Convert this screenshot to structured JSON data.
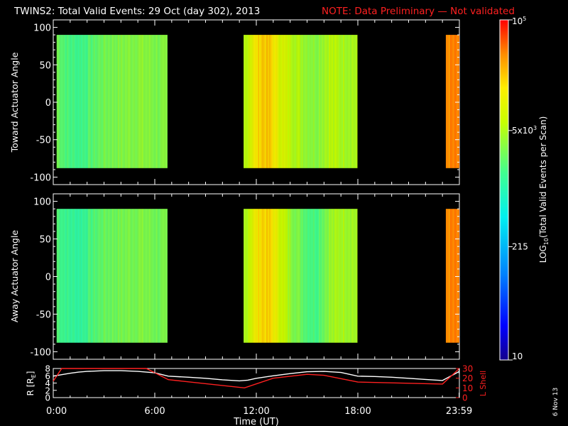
{
  "header": {
    "title": "TWINS2: Total Valid Events: 29 Oct (day 302), 2013",
    "note": "NOTE: Data Preliminary — Not validated",
    "note_color": "#ff2020"
  },
  "footer": {
    "date_stamp": "6 Nov 13"
  },
  "chart_data": [
    {
      "type": "heatmap",
      "panel": "toward",
      "ylabel": "Toward Actuator Angle",
      "ylim": [
        -110,
        110
      ],
      "yticks": [
        100,
        50,
        0,
        -50,
        -100
      ],
      "angle_range": [
        -88,
        90
      ],
      "x_unit": "hours UT",
      "coverage": [
        {
          "start": 0.2,
          "end": 6.75
        },
        {
          "start": 11.25,
          "end": 17.98
        },
        {
          "start": 23.2,
          "end": 24.0
        }
      ],
      "colorscale": "log10 events per scan, 10 to 1e5",
      "profile_hours": [
        0.2,
        0.8,
        1.5,
        2.2,
        3.0,
        4.0,
        5.0,
        6.0,
        6.75,
        11.25,
        11.8,
        12.3,
        12.8,
        13.3,
        14.0,
        15.0,
        15.5,
        16.3,
        17.0,
        17.98,
        23.2,
        24.0
      ],
      "profile_log_counts": [
        3.45,
        3.25,
        3.2,
        3.3,
        3.45,
        3.5,
        3.55,
        3.5,
        3.45,
        3.7,
        4.1,
        4.35,
        4.3,
        4.0,
        3.8,
        3.6,
        3.55,
        3.75,
        3.7,
        3.7,
        4.6,
        4.6
      ]
    },
    {
      "type": "heatmap",
      "panel": "away",
      "ylabel": "Away Actuator Angle",
      "ylim": [
        -110,
        110
      ],
      "yticks": [
        100,
        50,
        0,
        -50,
        -100
      ],
      "angle_range": [
        -88,
        90
      ],
      "x_unit": "hours UT",
      "coverage": [
        {
          "start": 0.2,
          "end": 6.75
        },
        {
          "start": 11.25,
          "end": 17.98
        },
        {
          "start": 23.2,
          "end": 24.0
        }
      ],
      "colorscale": "log10 events per scan, 10 to 1e5",
      "profile_hours": [
        0.2,
        0.8,
        1.5,
        2.2,
        3.0,
        4.0,
        5.0,
        6.0,
        6.75,
        11.25,
        11.8,
        12.3,
        12.8,
        13.3,
        14.0,
        15.0,
        15.5,
        16.3,
        17.0,
        17.98,
        23.2,
        24.0
      ],
      "profile_log_counts": [
        3.3,
        3.15,
        3.1,
        3.25,
        3.4,
        3.45,
        3.5,
        3.45,
        3.4,
        3.65,
        4.05,
        4.3,
        4.25,
        3.95,
        3.6,
        3.3,
        3.25,
        3.6,
        3.7,
        3.65,
        4.6,
        4.6
      ]
    },
    {
      "type": "line",
      "panel": "orbit",
      "ylabel": "R [Rₑ]",
      "ylabel_main": "R [R",
      "ylabel_sub": "E",
      "ylabel_close": "]",
      "ylim": [
        0,
        8
      ],
      "yticks": [
        8,
        6,
        4,
        2,
        0
      ],
      "y2label": "L Shell",
      "y2lim": [
        0,
        30
      ],
      "y2ticks": [
        30,
        20,
        10,
        0
      ],
      "xlabel": "Time (UT)",
      "xlim": [
        0,
        24
      ],
      "xticks": [
        0,
        6,
        12,
        18,
        23.983
      ],
      "xticklabels": [
        "0:00",
        "6:00",
        "12:00",
        "18:00",
        "23:59"
      ],
      "series": [
        {
          "color": "#ffffff",
          "axis": "left",
          "x": [
            0,
            0.5,
            1.0,
            1.5,
            2.0,
            3.0,
            4.0,
            5.0,
            6.0,
            6.8,
            8.0,
            9.0,
            10.0,
            11.0,
            11.5,
            12.0,
            13.0,
            14.0,
            15.0,
            16.0,
            17.0,
            18.0,
            19.0,
            20.0,
            21.0,
            22.0,
            23.0,
            24.0
          ],
          "y": [
            5.9,
            6.3,
            6.7,
            7.0,
            7.2,
            7.4,
            7.4,
            7.2,
            6.8,
            5.9,
            5.6,
            5.3,
            4.9,
            4.6,
            4.8,
            5.3,
            6.0,
            6.6,
            7.1,
            7.2,
            6.9,
            5.9,
            5.8,
            5.6,
            5.3,
            5.0,
            4.7,
            7.2
          ]
        },
        {
          "color": "#ff2020",
          "axis": "right",
          "x": [
            0,
            0.5,
            5.5,
            6.8,
            11.3,
            13.0,
            15.0,
            16.0,
            18.0,
            23.0,
            24.0
          ],
          "y": [
            17,
            30,
            30,
            18.5,
            10,
            20,
            24,
            23,
            16,
            14,
            30
          ]
        }
      ]
    }
  ],
  "colorbar": {
    "title_main": "LOG",
    "title_sub": "10",
    "title_rest": "(Total Valid Events per Scan)",
    "min": 10,
    "max": 100000,
    "ticks": [
      {
        "value": 10,
        "label": "10"
      },
      {
        "value": 215,
        "label": "215"
      },
      {
        "value": 5000,
        "label_mant": "5x10",
        "label_exp": "3"
      },
      {
        "value": 100000,
        "label_mant": "10",
        "label_exp": "5"
      }
    ]
  }
}
